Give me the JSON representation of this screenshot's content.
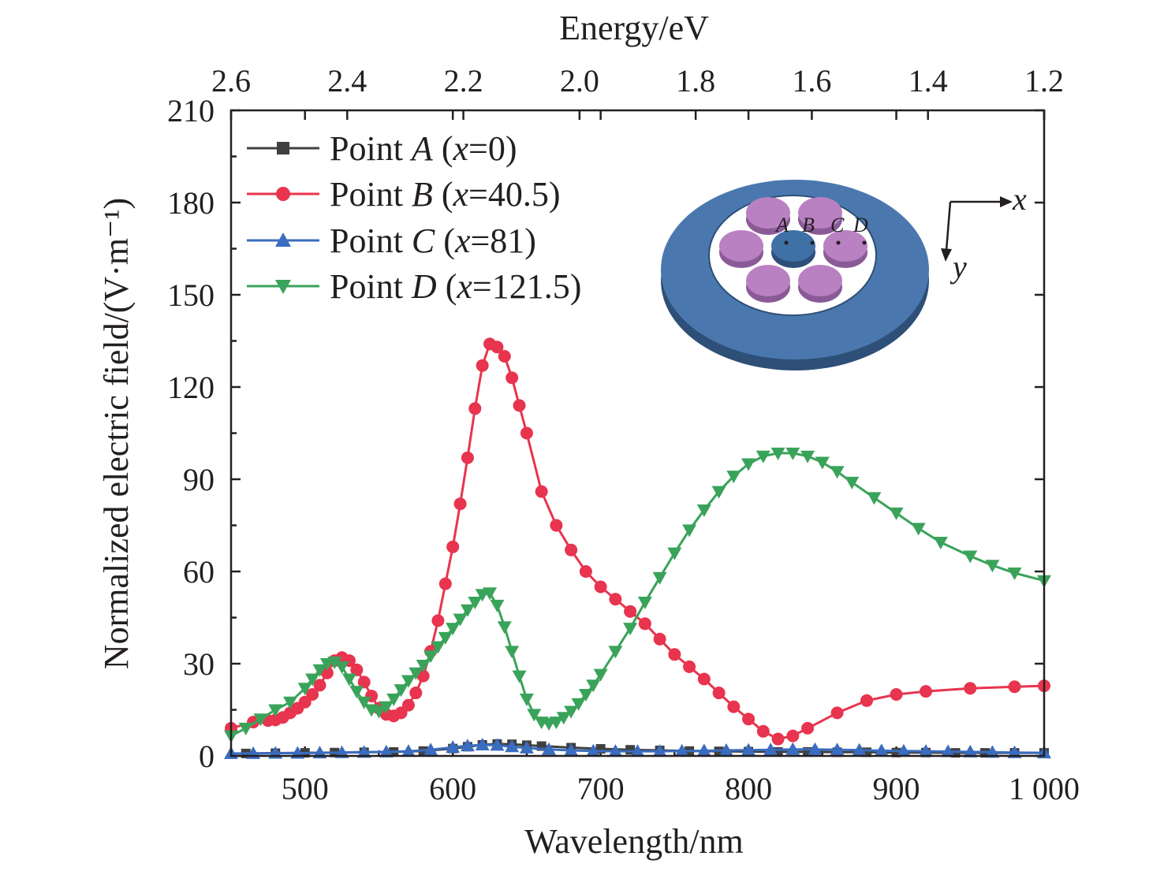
{
  "chart_data": {
    "type": "line",
    "xlabel": "Wavelength/nm",
    "ylabel": "Normalized electric field/(V·m⁻¹)",
    "top_xlabel": "Energy/eV",
    "xlim": [
      450,
      1000
    ],
    "ylim": [
      0,
      210
    ],
    "top_xlim": [
      2.6,
      1.2
    ],
    "x_ticks": [
      500,
      600,
      700,
      800,
      900,
      1000
    ],
    "x_tick_labels": [
      "500",
      "600",
      "700",
      "800",
      "900",
      "1 000"
    ],
    "y_ticks": [
      0,
      30,
      60,
      90,
      120,
      150,
      180,
      210
    ],
    "y_tick_labels": [
      "0",
      "30",
      "60",
      "90",
      "120",
      "150",
      "180",
      "210"
    ],
    "top_ticks": [
      2.6,
      2.4,
      2.2,
      2.0,
      1.8,
      1.6,
      1.4,
      1.2
    ],
    "top_tick_labels": [
      "2.6",
      "2.4",
      "2.2",
      "2.0",
      "1.8",
      "1.6",
      "1.4",
      "1.2"
    ],
    "grid": false,
    "legend_position": "top-left",
    "series": [
      {
        "legend_label": "Point A (x=0)",
        "point_letter": "A",
        "x_value": "0",
        "color": "#404040",
        "marker": "square",
        "x": [
          460,
          480,
          500,
          520,
          540,
          560,
          580,
          600,
          610,
          620,
          630,
          640,
          650,
          660,
          680,
          700,
          720,
          740,
          760,
          780,
          800,
          820,
          840,
          860,
          880,
          900,
          920,
          940,
          960,
          980,
          1000
        ],
        "y": [
          0.8,
          0.9,
          1.0,
          1.1,
          1.2,
          1.3,
          1.6,
          2.4,
          3.0,
          3.6,
          3.9,
          3.8,
          3.5,
          3.2,
          2.7,
          2.3,
          2.0,
          1.8,
          1.6,
          1.5,
          1.4,
          1.3,
          1.3,
          1.2,
          1.2,
          1.1,
          1.1,
          1.0,
          1.0,
          1.0,
          1.0
        ]
      },
      {
        "legend_label": "Point B (x=40.5)",
        "point_letter": "B",
        "x_value": "40.5",
        "color": "#e8344e",
        "marker": "circle",
        "x": [
          450,
          465,
          475,
          480,
          485,
          490,
          495,
          500,
          505,
          510,
          515,
          520,
          525,
          530,
          535,
          540,
          545,
          550,
          555,
          560,
          565,
          570,
          575,
          580,
          585,
          590,
          595,
          600,
          605,
          610,
          615,
          620,
          625,
          630,
          635,
          640,
          645,
          650,
          660,
          670,
          680,
          690,
          700,
          710,
          720,
          730,
          740,
          750,
          760,
          770,
          780,
          790,
          800,
          810,
          820,
          830,
          840,
          860,
          880,
          900,
          920,
          950,
          980,
          1000
        ],
        "y": [
          9.0,
          11.0,
          11.5,
          11.7,
          12.5,
          14.0,
          15.5,
          17.5,
          20.0,
          23.0,
          27.0,
          31.0,
          32.0,
          31.0,
          28.0,
          24.0,
          19.5,
          15.5,
          13.5,
          13.0,
          14.0,
          16.5,
          20.5,
          26.0,
          34.0,
          44.0,
          56.0,
          68.0,
          82.0,
          97.0,
          113.0,
          127.0,
          134.0,
          133.0,
          130.0,
          123.0,
          114.0,
          105.0,
          86.0,
          75.0,
          67.0,
          60.0,
          55.0,
          51.0,
          47.0,
          43.0,
          38.0,
          33.0,
          29.0,
          25.0,
          20.5,
          16.0,
          12.0,
          8.0,
          5.5,
          6.5,
          9.0,
          14.0,
          18.0,
          20.0,
          21.0,
          22.0,
          22.5,
          22.8
        ]
      },
      {
        "legend_label": "Point C (x=81)",
        "point_letter": "C",
        "x_value": "81",
        "color": "#3a6cbf",
        "marker": "triangle-up",
        "x": [
          450,
          465,
          480,
          495,
          510,
          525,
          540,
          555,
          570,
          585,
          600,
          610,
          620,
          630,
          640,
          650,
          665,
          680,
          695,
          710,
          725,
          740,
          755,
          770,
          785,
          800,
          815,
          830,
          845,
          860,
          875,
          890,
          905,
          920,
          935,
          950,
          965,
          980,
          1000
        ],
        "y": [
          0.8,
          0.8,
          0.9,
          0.9,
          1.0,
          1.1,
          1.2,
          1.3,
          1.5,
          2.0,
          2.8,
          3.3,
          3.6,
          3.5,
          3.0,
          2.6,
          2.1,
          1.8,
          1.6,
          1.5,
          1.5,
          1.5,
          1.6,
          1.7,
          1.8,
          1.9,
          2.0,
          2.1,
          2.1,
          2.0,
          1.9,
          1.7,
          1.6,
          1.5,
          1.4,
          1.3,
          1.2,
          1.1,
          1.0
        ]
      },
      {
        "legend_label": "Point D (x=121.5)",
        "point_letter": "D",
        "x_value": "121.5",
        "color": "#3aa35a",
        "marker": "triangle-down",
        "x": [
          450,
          460,
          470,
          480,
          490,
          500,
          505,
          510,
          515,
          520,
          525,
          530,
          535,
          540,
          545,
          550,
          555,
          560,
          565,
          570,
          575,
          580,
          585,
          590,
          595,
          600,
          605,
          610,
          615,
          620,
          625,
          630,
          635,
          640,
          645,
          650,
          655,
          660,
          665,
          670,
          675,
          680,
          685,
          690,
          695,
          700,
          710,
          720,
          730,
          740,
          750,
          760,
          770,
          780,
          790,
          800,
          810,
          820,
          830,
          840,
          850,
          860,
          870,
          885,
          900,
          915,
          930,
          950,
          965,
          980,
          1000
        ],
        "y": [
          6.5,
          9.0,
          12.0,
          15.0,
          17.5,
          22.0,
          25.0,
          28.0,
          30.0,
          30.5,
          29.0,
          25.0,
          21.0,
          17.5,
          15.0,
          14.5,
          16.0,
          18.5,
          21.5,
          24.5,
          27.0,
          29.5,
          32.5,
          35.5,
          38.5,
          41.5,
          44.5,
          47.5,
          50.0,
          52.5,
          53.0,
          49.0,
          42.0,
          34.0,
          26.0,
          18.5,
          13.5,
          11.0,
          10.5,
          11.0,
          12.5,
          14.5,
          17.0,
          20.0,
          23.0,
          26.5,
          34.0,
          41.5,
          50.0,
          58.0,
          66.0,
          73.5,
          80.0,
          86.0,
          91.0,
          95.0,
          97.5,
          98.5,
          98.5,
          97.5,
          95.5,
          92.5,
          89.0,
          84.0,
          79.0,
          74.0,
          69.5,
          65.0,
          62.0,
          59.5,
          57.0
        ]
      }
    ],
    "inset": {
      "point_labels": [
        "A",
        "B",
        "C",
        "D"
      ],
      "axis_x": "x",
      "axis_y": "y",
      "ring_color": "#4a78ae",
      "central_disk_color": "#3f70a6",
      "disk_color": "#b980c2"
    }
  }
}
